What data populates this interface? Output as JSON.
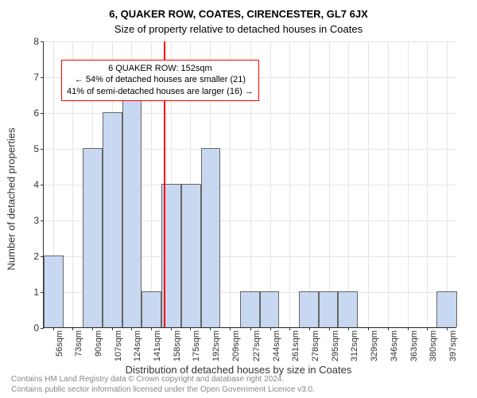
{
  "title_main": "6, QUAKER ROW, COATES, CIRENCESTER, GL7 6JX",
  "title_sub": "Size of property relative to detached houses in Coates",
  "ylabel": "Number of detached properties",
  "xlabel": "Distribution of detached houses by size in Coates",
  "footer_line1": "Contains HM Land Registry data © Crown copyright and database right 2024.",
  "footer_line2": "Contains public sector information licensed under the Open Government Licence v3.0.",
  "chart": {
    "type": "histogram",
    "background_color": "#ffffff",
    "grid_color": "#e5e5e5",
    "axis_color": "#333333",
    "bar_color": "#c8d8f0",
    "bar_border_color": "#666666",
    "marker_color": "#ff0000",
    "annotation_border_color": "#ff0000",
    "label_font_size": 12,
    "tick_font_size": 11,
    "y": {
      "min": 0,
      "max": 8,
      "ticks": [
        0,
        1,
        2,
        3,
        4,
        5,
        6,
        7,
        8
      ]
    },
    "x": {
      "min": 48,
      "max": 406,
      "tick_labels": [
        "56sqm",
        "73sqm",
        "90sqm",
        "107sqm",
        "124sqm",
        "141sqm",
        "158sqm",
        "175sqm",
        "192sqm",
        "209sqm",
        "227sqm",
        "244sqm",
        "261sqm",
        "278sqm",
        "295sqm",
        "312sqm",
        "329sqm",
        "346sqm",
        "363sqm",
        "380sqm",
        "397sqm"
      ],
      "tick_values": [
        56,
        73,
        90,
        107,
        124,
        141,
        158,
        175,
        192,
        209,
        227,
        244,
        261,
        278,
        295,
        312,
        329,
        346,
        363,
        380,
        397
      ]
    },
    "bins": [
      {
        "start": 48,
        "end": 65,
        "count": 2
      },
      {
        "start": 65,
        "end": 82,
        "count": 0
      },
      {
        "start": 82,
        "end": 99,
        "count": 5
      },
      {
        "start": 99,
        "end": 116,
        "count": 6
      },
      {
        "start": 116,
        "end": 133,
        "count": 7
      },
      {
        "start": 133,
        "end": 150,
        "count": 1
      },
      {
        "start": 150,
        "end": 167,
        "count": 4
      },
      {
        "start": 167,
        "end": 184,
        "count": 4
      },
      {
        "start": 184,
        "end": 201,
        "count": 5
      },
      {
        "start": 201,
        "end": 218,
        "count": 0
      },
      {
        "start": 218,
        "end": 235,
        "count": 1
      },
      {
        "start": 235,
        "end": 252,
        "count": 1
      },
      {
        "start": 252,
        "end": 269,
        "count": 0
      },
      {
        "start": 269,
        "end": 286,
        "count": 1
      },
      {
        "start": 286,
        "end": 303,
        "count": 1
      },
      {
        "start": 303,
        "end": 320,
        "count": 1
      },
      {
        "start": 320,
        "end": 337,
        "count": 0
      },
      {
        "start": 337,
        "end": 354,
        "count": 0
      },
      {
        "start": 354,
        "end": 371,
        "count": 0
      },
      {
        "start": 371,
        "end": 388,
        "count": 0
      },
      {
        "start": 388,
        "end": 406,
        "count": 1
      }
    ],
    "marker_value": 152,
    "annotation": {
      "line1": "6 QUAKER ROW: 152sqm",
      "line2": "← 54% of detached houses are smaller (21)",
      "line3": "41% of semi-detached houses are larger (16) →"
    }
  }
}
